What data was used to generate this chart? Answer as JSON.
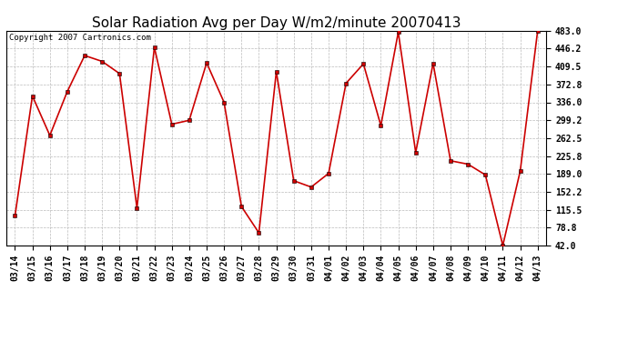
{
  "title": "Solar Radiation Avg per Day W/m2/minute 20070413",
  "copyright_text": "Copyright 2007 Cartronics.com",
  "labels": [
    "03/14",
    "03/15",
    "03/16",
    "03/17",
    "03/18",
    "03/19",
    "03/20",
    "03/21",
    "03/22",
    "03/23",
    "03/24",
    "03/25",
    "03/26",
    "03/27",
    "03/28",
    "03/29",
    "03/30",
    "03/31",
    "04/01",
    "04/02",
    "04/03",
    "04/04",
    "04/05",
    "04/06",
    "04/07",
    "04/08",
    "04/09",
    "04/10",
    "04/11",
    "04/12",
    "04/13"
  ],
  "values": [
    103,
    349,
    268,
    358,
    432,
    420,
    395,
    119,
    449,
    291,
    299,
    417,
    336,
    122,
    68,
    399,
    175,
    162,
    190,
    375,
    415,
    288,
    480,
    233,
    416,
    216,
    209,
    187,
    42,
    195,
    483
  ],
  "line_color": "#cc0000",
  "marker_color": "#000000",
  "background_color": "#ffffff",
  "plot_bg_color": "#ffffff",
  "grid_color": "#bbbbbb",
  "ylim": [
    42.0,
    483.0
  ],
  "yticks": [
    42.0,
    78.8,
    115.5,
    152.2,
    189.0,
    225.8,
    262.5,
    299.2,
    336.0,
    372.8,
    409.5,
    446.2,
    483.0
  ],
  "title_fontsize": 11,
  "tick_fontsize": 7,
  "copyright_fontsize": 6.5
}
